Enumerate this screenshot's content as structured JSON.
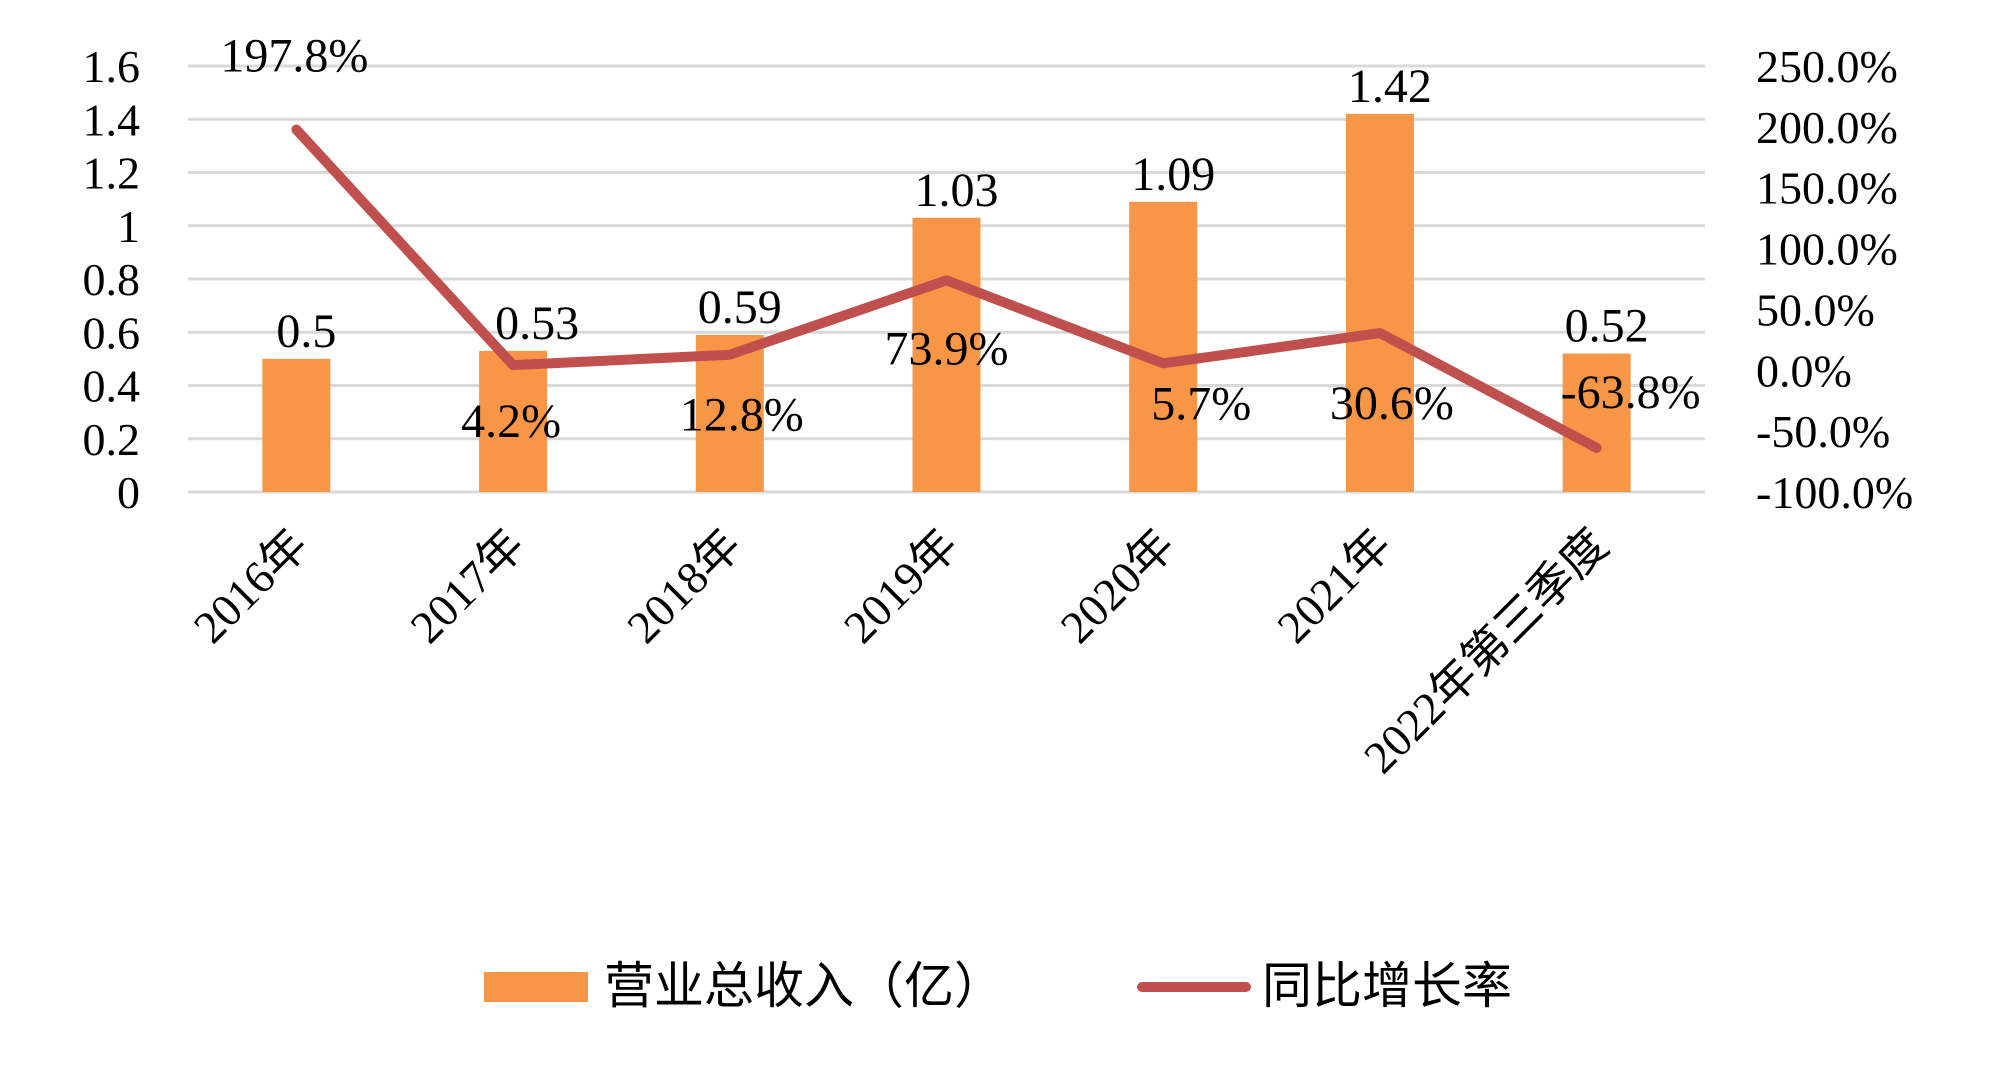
{
  "chart_data": {
    "type": "bar+line",
    "categories": [
      "2016年",
      "2017年",
      "2018年",
      "2019年",
      "2020年",
      "2021年",
      "2022年第三季度"
    ],
    "series": [
      {
        "name": "营业总收入（亿）",
        "type": "bar",
        "axis": "left",
        "values": [
          0.5,
          0.53,
          0.59,
          1.03,
          1.09,
          1.42,
          0.52
        ],
        "labels": [
          "0.5",
          "0.53",
          "0.59",
          "1.03",
          "1.09",
          "1.42",
          "0.52"
        ],
        "color": "#F79646"
      },
      {
        "name": "同比增长率",
        "type": "line",
        "axis": "right",
        "values": [
          197.8,
          4.2,
          12.8,
          73.9,
          5.7,
          30.6,
          -63.8
        ],
        "labels": [
          "197.8%",
          "4.2%",
          "12.8%",
          "73.9%",
          "5.7%",
          "30.6%",
          "-63.8%"
        ],
        "color": "#C0504D"
      }
    ],
    "left_axis": {
      "ylim": [
        0,
        1.6
      ],
      "ticks": [
        "0",
        "0.2",
        "0.4",
        "0.6",
        "0.8",
        "1",
        "1.2",
        "1.4",
        "1.6"
      ]
    },
    "right_axis": {
      "ylim": [
        -100,
        250
      ],
      "ticks": [
        "-100.0%",
        "-50.0%",
        "0.0%",
        "50.0%",
        "100.0%",
        "150.0%",
        "200.0%",
        "250.0%"
      ]
    },
    "grid": true,
    "legend_position": "bottom",
    "gridline_color": "#D9D9D9"
  }
}
